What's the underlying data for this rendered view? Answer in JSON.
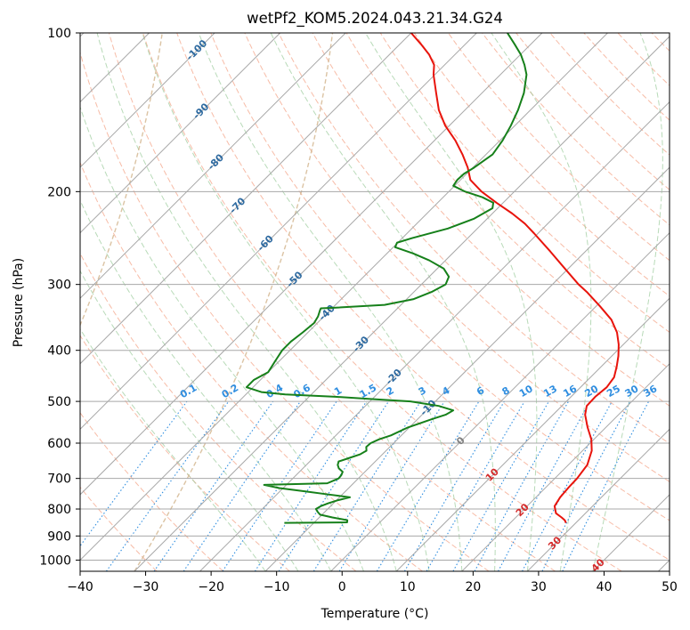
{
  "chart_data": {
    "type": "skew-t",
    "title": "wetPf2_KOM5.2024.043.21.34.G24",
    "xlabel": "Temperature (°C)",
    "ylabel": "Pressure (hPa)",
    "xlim": [
      -40,
      50
    ],
    "ylim": [
      1050,
      100
    ],
    "y_scale": "log",
    "grid": true,
    "x_ticks": [
      -40,
      -30,
      -20,
      -10,
      0,
      10,
      20,
      30,
      40,
      50
    ],
    "x_tick_labels": [
      "−40",
      "−30",
      "−20",
      "−10",
      "0",
      "10",
      "20",
      "30",
      "40",
      "50"
    ],
    "y_ticks": [
      1000,
      900,
      800,
      700,
      600,
      500,
      400,
      300,
      200,
      100
    ],
    "y_tick_labels": [
      "1000",
      "900",
      "800",
      "700",
      "600",
      "500",
      "400",
      "300",
      "200",
      "100"
    ],
    "colors": {
      "temperature": "#e8140c",
      "dewpoint": "#16801a",
      "isotherm": "#a8a8a8",
      "dry_adiabat": "#f4a58a",
      "moist_adiabat": "#9acb9a",
      "mixing_ratio": "#2f8ee0",
      "tropo_curve": "#d2b48c",
      "isotherm_label": "#2e6aa0",
      "warm_label": "#d42b2b",
      "zero_label": "#808080"
    },
    "isotherm_labels": [
      "-100",
      "-90",
      "-80",
      "-70",
      "-60",
      "-50",
      "-40",
      "-30",
      "-20",
      "-10",
      "0",
      "10",
      "20",
      "30",
      "40"
    ],
    "mixing_ratio_labels": [
      "0.1",
      "0.2",
      "0.4",
      "0.6",
      "1",
      "1.5",
      "2",
      "3",
      "4",
      "6",
      "8",
      "10",
      "13",
      "16",
      "20",
      "25",
      "30",
      "36"
    ],
    "series": [
      {
        "id": "temperature",
        "points": [
          [
            850,
            28.5
          ],
          [
            840,
            27.9
          ],
          [
            830,
            27.0
          ],
          [
            815,
            25.5
          ],
          [
            790,
            24.2
          ],
          [
            760,
            23.7
          ],
          [
            730,
            23.5
          ],
          [
            700,
            23.4
          ],
          [
            660,
            22.9
          ],
          [
            620,
            21.4
          ],
          [
            590,
            19.6
          ],
          [
            560,
            17.2
          ],
          [
            530,
            14.9
          ],
          [
            510,
            13.8
          ],
          [
            490,
            13.7
          ],
          [
            470,
            14.0
          ],
          [
            450,
            13.6
          ],
          [
            430,
            12.4
          ],
          [
            410,
            11.0
          ],
          [
            390,
            9.3
          ],
          [
            370,
            7.2
          ],
          [
            350,
            4.4
          ],
          [
            330,
            0.6
          ],
          [
            310,
            -3.6
          ],
          [
            300,
            -6.0
          ],
          [
            280,
            -10.5
          ],
          [
            260,
            -15.3
          ],
          [
            240,
            -20.6
          ],
          [
            230,
            -23.5
          ],
          [
            220,
            -27.0
          ],
          [
            210,
            -31.0
          ],
          [
            200,
            -35.0
          ],
          [
            190,
            -38.5
          ],
          [
            180,
            -40.8
          ],
          [
            170,
            -43.6
          ],
          [
            160,
            -46.8
          ],
          [
            150,
            -50.6
          ],
          [
            140,
            -54.0
          ],
          [
            130,
            -57.0
          ],
          [
            120,
            -60.2
          ],
          [
            115,
            -61.6
          ],
          [
            110,
            -63.9
          ],
          [
            105,
            -66.8
          ],
          [
            100,
            -70.0
          ]
        ]
      },
      {
        "id": "dewpoint",
        "points": [
          [
            850,
            -14.5
          ],
          [
            848,
            -5.0
          ],
          [
            840,
            -5.3
          ],
          [
            830,
            -8.0
          ],
          [
            820,
            -10.3
          ],
          [
            810,
            -11.1
          ],
          [
            800,
            -11.8
          ],
          [
            790,
            -11.5
          ],
          [
            780,
            -10.8
          ],
          [
            770,
            -9.8
          ],
          [
            760,
            -8.4
          ],
          [
            750,
            -12.4
          ],
          [
            740,
            -16.4
          ],
          [
            730,
            -20.6
          ],
          [
            720,
            -23.4
          ],
          [
            715,
            -14.0
          ],
          [
            700,
            -13.0
          ],
          [
            690,
            -13.1
          ],
          [
            680,
            -13.4
          ],
          [
            670,
            -14.5
          ],
          [
            660,
            -15.2
          ],
          [
            650,
            -15.6
          ],
          [
            640,
            -14.5
          ],
          [
            630,
            -13.4
          ],
          [
            620,
            -13.0
          ],
          [
            610,
            -13.6
          ],
          [
            600,
            -13.5
          ],
          [
            590,
            -12.8
          ],
          [
            580,
            -11.6
          ],
          [
            560,
            -10.2
          ],
          [
            540,
            -7.8
          ],
          [
            530,
            -6.4
          ],
          [
            520,
            -5.9
          ],
          [
            510,
            -8.8
          ],
          [
            500,
            -13.8
          ],
          [
            495,
            -20.0
          ],
          [
            490,
            -26.0
          ],
          [
            485,
            -34.0
          ],
          [
            480,
            -38.0
          ],
          [
            470,
            -41.0
          ],
          [
            455,
            -41.0
          ],
          [
            440,
            -40.0
          ],
          [
            420,
            -40.6
          ],
          [
            400,
            -41.2
          ],
          [
            385,
            -41.2
          ],
          [
            370,
            -40.8
          ],
          [
            355,
            -40.5
          ],
          [
            345,
            -40.9
          ],
          [
            335,
            -41.6
          ],
          [
            333,
            -41.7
          ],
          [
            332,
            -39.5
          ],
          [
            328,
            -32.5
          ],
          [
            320,
            -29.0
          ],
          [
            310,
            -27.3
          ],
          [
            300,
            -26.3
          ],
          [
            290,
            -27.0
          ],
          [
            280,
            -29.0
          ],
          [
            270,
            -32.5
          ],
          [
            262,
            -36.0
          ],
          [
            255,
            -39.7
          ],
          [
            250,
            -40.1
          ],
          [
            245,
            -38.5
          ],
          [
            235,
            -34.5
          ],
          [
            225,
            -32.0
          ],
          [
            215,
            -30.8
          ],
          [
            210,
            -31.5
          ],
          [
            205,
            -34.0
          ],
          [
            200,
            -37.5
          ],
          [
            195,
            -40.2
          ],
          [
            190,
            -40.5
          ],
          [
            185,
            -40.4
          ],
          [
            180,
            -39.8
          ],
          [
            170,
            -39.0
          ],
          [
            160,
            -39.6
          ],
          [
            150,
            -40.6
          ],
          [
            140,
            -41.9
          ],
          [
            130,
            -43.6
          ],
          [
            120,
            -46.0
          ],
          [
            115,
            -47.8
          ],
          [
            110,
            -49.9
          ],
          [
            105,
            -52.5
          ],
          [
            100,
            -55.3
          ]
        ]
      }
    ]
  }
}
